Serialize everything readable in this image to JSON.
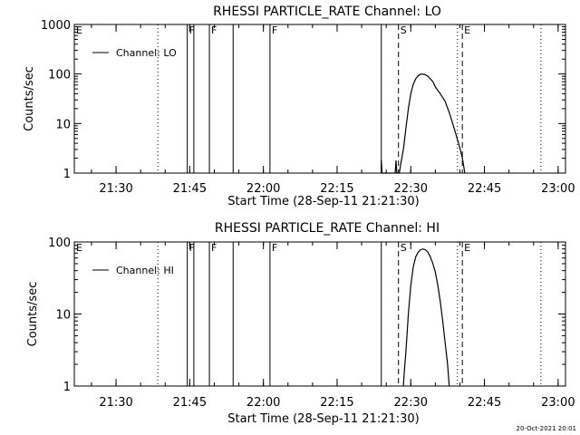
{
  "footer": {
    "timestamp": "20-Oct-2021 20:01"
  },
  "chart_data": [
    {
      "type": "line",
      "title": "RHESSI PARTICLE_RATE Channel: LO",
      "xlabel": "Start Time (28-Sep-11 21:21:30)",
      "ylabel": "Counts/sec",
      "y_scale": "log",
      "xlim": [
        "21:21:30",
        "23:01:30"
      ],
      "ylim": [
        1,
        1000
      ],
      "x_ticks": [
        "21:30",
        "21:45",
        "22:00",
        "22:15",
        "22:30",
        "22:45",
        "23:00"
      ],
      "y_ticks": [
        "1",
        "10",
        "100",
        "1000"
      ],
      "legend": {
        "placement": "top-left",
        "entries": [
          "Channel: LO"
        ]
      },
      "markers": [
        {
          "label": "E",
          "time": "21:21:30",
          "style": "dotted"
        },
        {
          "label": "",
          "time": "21:38:30",
          "style": "dotted"
        },
        {
          "label": "F",
          "time": "21:44:30",
          "style": "solid"
        },
        {
          "label": "",
          "time": "21:45:50",
          "style": "solid"
        },
        {
          "label": "F",
          "time": "21:49:00",
          "style": "solid"
        },
        {
          "label": "",
          "time": "21:53:50",
          "style": "solid"
        },
        {
          "label": "F",
          "time": "22:01:20",
          "style": "solid"
        },
        {
          "label": "",
          "time": "22:24:00",
          "style": "solid"
        },
        {
          "label": "S",
          "time": "22:27:30",
          "style": "dashed"
        },
        {
          "label": "",
          "time": "22:39:30",
          "style": "dotted"
        },
        {
          "label": "E",
          "time": "22:40:30",
          "style": "dashed"
        },
        {
          "label": "",
          "time": "22:56:30",
          "style": "dotted"
        }
      ],
      "series": [
        {
          "name": "Channel: LO",
          "points": [
            [
              "22:24:00",
              1
            ],
            [
              "22:24:00",
              1.8
            ],
            [
              "22:24:08",
              1
            ],
            [
              "22:26:50",
              1
            ],
            [
              "22:27:00",
              1.8
            ],
            [
              "22:27:10",
              1
            ],
            [
              "22:27:40",
              1
            ],
            [
              "22:28:00",
              1.6
            ],
            [
              "22:28:30",
              3
            ],
            [
              "22:29:00",
              8
            ],
            [
              "22:29:30",
              20
            ],
            [
              "22:30:00",
              40
            ],
            [
              "22:30:30",
              62
            ],
            [
              "22:31:00",
              80
            ],
            [
              "22:31:30",
              92
            ],
            [
              "22:32:00",
              99
            ],
            [
              "22:32:30",
              99
            ],
            [
              "22:33:00",
              97
            ],
            [
              "22:33:30",
              90
            ],
            [
              "22:34:00",
              80
            ],
            [
              "22:34:30",
              70
            ],
            [
              "22:35:00",
              55
            ],
            [
              "22:36:00",
              40
            ],
            [
              "22:37:00",
              28
            ],
            [
              "22:38:00",
              15
            ],
            [
              "22:39:00",
              7
            ],
            [
              "22:40:00",
              3.2
            ],
            [
              "22:40:30",
              2
            ],
            [
              "22:41:00",
              1
            ]
          ]
        }
      ]
    },
    {
      "type": "line",
      "title": "RHESSI PARTICLE_RATE Channel: HI",
      "xlabel": "Start Time (28-Sep-11 21:21:30)",
      "ylabel": "Counts/sec",
      "y_scale": "log",
      "xlim": [
        "21:21:30",
        "23:01:30"
      ],
      "ylim": [
        1,
        100
      ],
      "x_ticks": [
        "21:30",
        "21:45",
        "22:00",
        "22:15",
        "22:30",
        "22:45",
        "23:00"
      ],
      "y_ticks": [
        "1",
        "10",
        "100"
      ],
      "legend": {
        "placement": "top-left",
        "entries": [
          "Channel: HI"
        ]
      },
      "markers": [
        {
          "label": "E",
          "time": "21:21:30",
          "style": "dotted"
        },
        {
          "label": "",
          "time": "21:38:30",
          "style": "dotted"
        },
        {
          "label": "F",
          "time": "21:44:30",
          "style": "solid"
        },
        {
          "label": "",
          "time": "21:45:50",
          "style": "solid"
        },
        {
          "label": "F",
          "time": "21:49:00",
          "style": "solid"
        },
        {
          "label": "",
          "time": "21:53:50",
          "style": "solid"
        },
        {
          "label": "F",
          "time": "22:01:20",
          "style": "solid"
        },
        {
          "label": "",
          "time": "22:24:00",
          "style": "solid"
        },
        {
          "label": "S",
          "time": "22:27:30",
          "style": "dashed"
        },
        {
          "label": "",
          "time": "22:39:30",
          "style": "dotted"
        },
        {
          "label": "E",
          "time": "22:40:30",
          "style": "dashed"
        },
        {
          "label": "",
          "time": "22:56:30",
          "style": "dotted"
        }
      ],
      "series": [
        {
          "name": "Channel: HI",
          "points": [
            [
              "22:28:30",
              1
            ],
            [
              "22:28:40",
              1.5
            ],
            [
              "22:29:00",
              3
            ],
            [
              "22:29:30",
              10
            ],
            [
              "22:30:00",
              25
            ],
            [
              "22:30:30",
              45
            ],
            [
              "22:31:00",
              62
            ],
            [
              "22:31:30",
              72
            ],
            [
              "22:32:00",
              78
            ],
            [
              "22:32:30",
              80
            ],
            [
              "22:33:00",
              78
            ],
            [
              "22:33:30",
              72
            ],
            [
              "22:34:00",
              62
            ],
            [
              "22:34:30",
              50
            ],
            [
              "22:35:00",
              38
            ],
            [
              "22:35:30",
              25
            ],
            [
              "22:36:00",
              15
            ],
            [
              "22:36:30",
              8
            ],
            [
              "22:37:00",
              4
            ],
            [
              "22:37:30",
              2
            ],
            [
              "22:37:50",
              1
            ]
          ]
        }
      ]
    }
  ]
}
